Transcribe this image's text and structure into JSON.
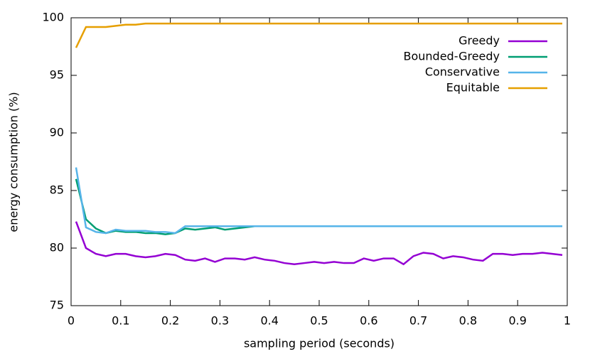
{
  "chart_data": {
    "type": "line",
    "xlabel": "sampling period (seconds)",
    "ylabel": "energy consumption (%)",
    "x": [
      0.01,
      0.03,
      0.05,
      0.07,
      0.09,
      0.11,
      0.13,
      0.15,
      0.17,
      0.19,
      0.21,
      0.23,
      0.25,
      0.27,
      0.29,
      0.31,
      0.33,
      0.35,
      0.37,
      0.39,
      0.41,
      0.43,
      0.45,
      0.47,
      0.49,
      0.51,
      0.53,
      0.55,
      0.57,
      0.59,
      0.61,
      0.63,
      0.65,
      0.67,
      0.69,
      0.71,
      0.73,
      0.75,
      0.77,
      0.79,
      0.81,
      0.83,
      0.85,
      0.87,
      0.89,
      0.91,
      0.93,
      0.95,
      0.97,
      0.99
    ],
    "series": [
      {
        "name": "Greedy",
        "color": "#9400d3",
        "values": [
          82.3,
          80.0,
          79.5,
          79.3,
          79.5,
          79.5,
          79.3,
          79.2,
          79.3,
          79.5,
          79.4,
          79.0,
          78.9,
          79.1,
          78.8,
          79.1,
          79.1,
          79.0,
          79.2,
          79.0,
          78.9,
          78.7,
          78.6,
          78.7,
          78.8,
          78.7,
          78.8,
          78.7,
          78.7,
          79.1,
          78.9,
          79.1,
          79.1,
          78.6,
          79.3,
          79.6,
          79.5,
          79.1,
          79.3,
          79.2,
          79.0,
          78.9,
          79.5,
          79.5,
          79.4,
          79.5,
          79.5,
          79.6,
          79.5,
          79.4
        ]
      },
      {
        "name": "Bounded-Greedy",
        "color": "#009e73",
        "values": [
          86.0,
          82.5,
          81.7,
          81.3,
          81.5,
          81.4,
          81.4,
          81.3,
          81.3,
          81.2,
          81.3,
          81.7,
          81.6,
          81.7,
          81.8,
          81.6,
          81.7,
          81.8,
          81.9,
          81.9,
          81.9,
          81.9,
          81.9,
          81.9,
          81.9,
          81.9,
          81.9,
          81.9,
          81.9,
          81.9,
          81.9,
          81.9,
          81.9,
          81.9,
          81.9,
          81.9,
          81.9,
          81.9,
          81.9,
          81.9,
          81.9,
          81.9,
          81.9,
          81.9,
          81.9,
          81.9,
          81.9,
          81.9,
          81.9,
          81.9
        ]
      },
      {
        "name": "Conservative",
        "color": "#56b4e9",
        "values": [
          87.0,
          81.8,
          81.4,
          81.3,
          81.6,
          81.5,
          81.5,
          81.5,
          81.4,
          81.4,
          81.3,
          81.9,
          81.9,
          81.9,
          81.9,
          81.9,
          81.9,
          81.9,
          81.9,
          81.9,
          81.9,
          81.9,
          81.9,
          81.9,
          81.9,
          81.9,
          81.9,
          81.9,
          81.9,
          81.9,
          81.9,
          81.9,
          81.9,
          81.9,
          81.9,
          81.9,
          81.9,
          81.9,
          81.9,
          81.9,
          81.9,
          81.9,
          81.9,
          81.9,
          81.9,
          81.9,
          81.9,
          81.9,
          81.9,
          81.9
        ]
      },
      {
        "name": "Equitable",
        "color": "#e69f00",
        "values": [
          97.4,
          99.2,
          99.2,
          99.2,
          99.3,
          99.4,
          99.4,
          99.5,
          99.5,
          99.5,
          99.5,
          99.5,
          99.5,
          99.5,
          99.5,
          99.5,
          99.5,
          99.5,
          99.5,
          99.5,
          99.5,
          99.5,
          99.5,
          99.5,
          99.5,
          99.5,
          99.5,
          99.5,
          99.5,
          99.5,
          99.5,
          99.5,
          99.5,
          99.5,
          99.5,
          99.5,
          99.5,
          99.5,
          99.5,
          99.5,
          99.5,
          99.5,
          99.5,
          99.5,
          99.5,
          99.5,
          99.5,
          99.5,
          99.5,
          99.5
        ]
      }
    ],
    "xlim": [
      0,
      1
    ],
    "xticks": [
      0,
      0.1,
      0.2,
      0.3,
      0.4,
      0.5,
      0.6,
      0.7,
      0.8,
      0.9,
      1
    ],
    "ylim": [
      75,
      100
    ],
    "yticks": [
      75,
      80,
      85,
      90,
      95,
      100
    ],
    "legend": "top-right"
  }
}
